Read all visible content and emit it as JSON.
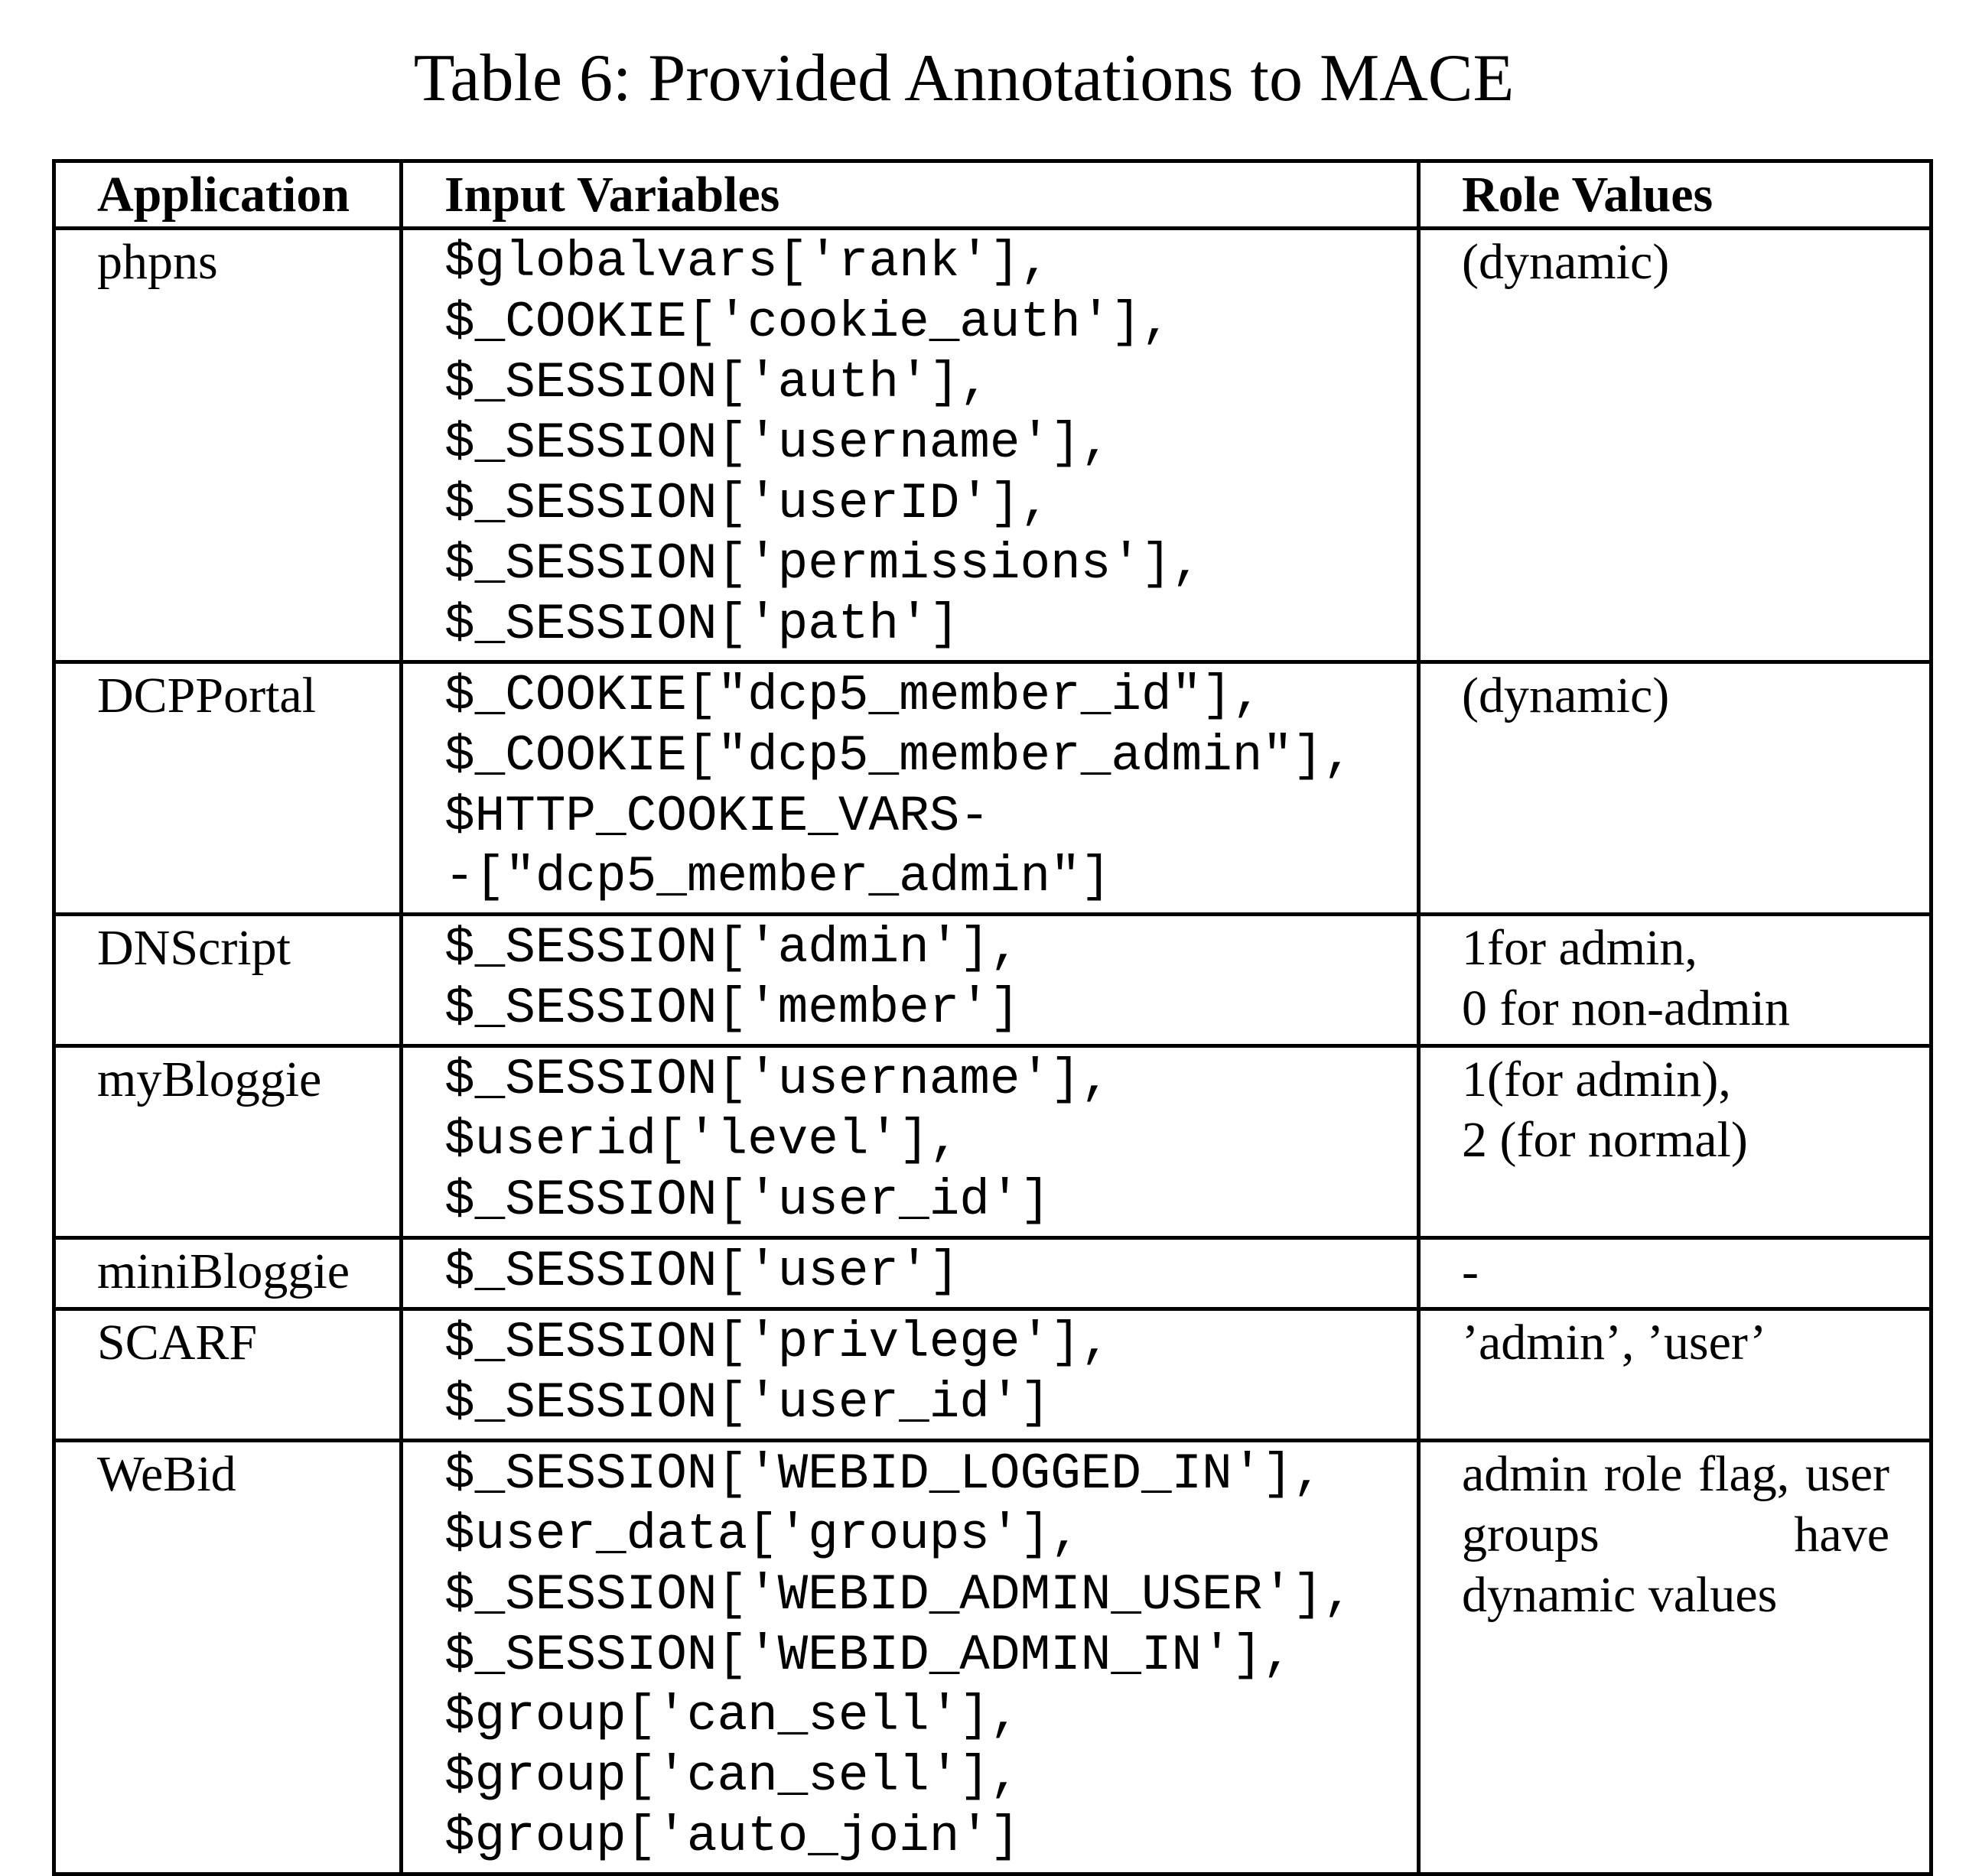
{
  "caption": "Table 6: Provided Annotations to MACE",
  "table": {
    "headers": [
      "Application",
      "Input Variables",
      "Role Values"
    ],
    "rows": [
      {
        "application": "phpns",
        "variables": [
          "$globalvars['rank'],",
          "$_COOKIE['cookie_auth'],",
          "$_SESSION['auth'],",
          "$_SESSION['username'],",
          "$_SESSION['userID'],",
          "$_SESSION['permissions'],",
          "$_SESSION['path']"
        ],
        "roles": [
          "(dynamic)"
        ]
      },
      {
        "application": "DCPPortal",
        "variables": [
          "$_COOKIE[\"dcp5_member_id\"],",
          "$_COOKIE[\"dcp5_member_admin\"],",
          "$HTTP_COOKIE_VARS-",
          "-[\"dcp5_member_admin\"]"
        ],
        "roles": [
          "(dynamic)"
        ]
      },
      {
        "application": "DNScript",
        "variables": [
          "$_SESSION['admin'],",
          "$_SESSION['member']"
        ],
        "roles": [
          "1for admin,",
          "0 for non-admin"
        ]
      },
      {
        "application": "myBloggie",
        "variables": [
          "$_SESSION['username'],",
          "$userid['level'],",
          "$_SESSION['user_id']"
        ],
        "roles": [
          "1(for admin),",
          "2 (for normal)"
        ]
      },
      {
        "application": "miniBloggie",
        "variables": [
          "$_SESSION['user']"
        ],
        "roles": [
          "-"
        ]
      },
      {
        "application": "SCARF",
        "variables": [
          "$_SESSION['privlege'],",
          "$_SESSION['user_id']"
        ],
        "roles": [
          "’admin’, ’user’"
        ]
      },
      {
        "application": "WeBid",
        "variables": [
          "$_SESSION['WEBID_LOGGED_IN'],",
          "$user_data['groups'],",
          "$_SESSION['WEBID_ADMIN_USER'],",
          "$_SESSION['WEBID_ADMIN_IN'],",
          "$group['can_sell'],",
          "$group['can_sell'],",
          "$group['auto_join']"
        ],
        "roles": [
          "admin role flag, user groups have dynamic values"
        ]
      }
    ]
  }
}
